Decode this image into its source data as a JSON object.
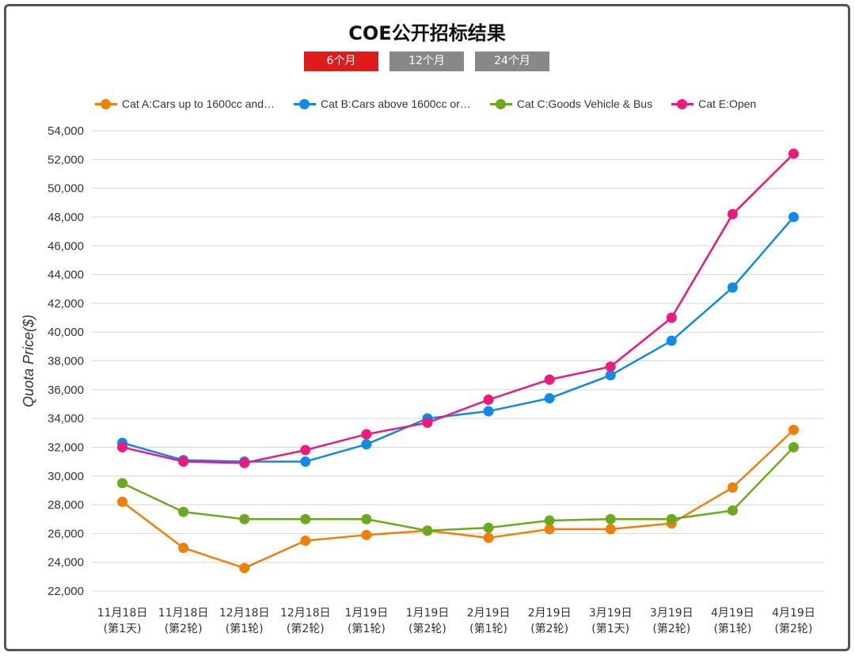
{
  "title": "COE公开招标结果",
  "tabs": [
    {
      "label": "6个月",
      "active": true
    },
    {
      "label": "12个月",
      "active": false
    },
    {
      "label": "24个月",
      "active": false
    }
  ],
  "chart_data": {
    "type": "line",
    "title": "COE公开招标结果",
    "ylabel": "Quota Price($)",
    "xlabel": "",
    "ylim": [
      22000,
      54000
    ],
    "yticks": [
      22000,
      24000,
      26000,
      28000,
      30000,
      32000,
      34000,
      36000,
      38000,
      40000,
      42000,
      44000,
      46000,
      48000,
      50000,
      52000,
      54000
    ],
    "ytick_labels": [
      "22,000",
      "24,000",
      "26,000",
      "28,000",
      "30,000",
      "32,000",
      "34,000",
      "36,000",
      "38,000",
      "40,000",
      "42,000",
      "44,000",
      "46,000",
      "48,000",
      "50,000",
      "52,000",
      "54,000"
    ],
    "categories": [
      [
        "11月18日",
        "(第1天)"
      ],
      [
        "11月18日",
        "(第2轮)"
      ],
      [
        "12月18日",
        "(第1轮)"
      ],
      [
        "12月18日",
        "(第2轮)"
      ],
      [
        "1月19日",
        "(第1轮)"
      ],
      [
        "1月19日",
        "(第2轮)"
      ],
      [
        "2月19日",
        "(第1轮)"
      ],
      [
        "2月19日",
        "(第2轮)"
      ],
      [
        "3月19日",
        "(第1天)"
      ],
      [
        "3月19日",
        "(第2轮)"
      ],
      [
        "4月19日",
        "(第1轮)"
      ],
      [
        "4月19日",
        "(第2轮)"
      ]
    ],
    "series": [
      {
        "name": "Cat A:Cars up to 1600cc and…",
        "color": "#f07f09",
        "values": [
          28200,
          25000,
          23600,
          25500,
          25900,
          26200,
          25700,
          26300,
          26300,
          26700,
          29200,
          33200
        ]
      },
      {
        "name": "Cat B:Cars above 1600cc or…",
        "color": "#0f8ae8",
        "values": [
          32300,
          31100,
          31000,
          31000,
          32200,
          34000,
          34500,
          35400,
          37000,
          39400,
          43100,
          48000
        ]
      },
      {
        "name": "Cat C:Goods Vehicle & Bus",
        "color": "#6aaa1c",
        "values": [
          29500,
          27500,
          27000,
          27000,
          27000,
          26200,
          26400,
          26900,
          27000,
          27000,
          27600,
          32000
        ]
      },
      {
        "name": "Cat E:Open",
        "color": "#ea1a7f",
        "values": [
          32000,
          31000,
          30900,
          31800,
          32900,
          33700,
          35300,
          36700,
          37600,
          41000,
          48200,
          52400
        ]
      }
    ],
    "legend_position": "top",
    "grid": true
  }
}
